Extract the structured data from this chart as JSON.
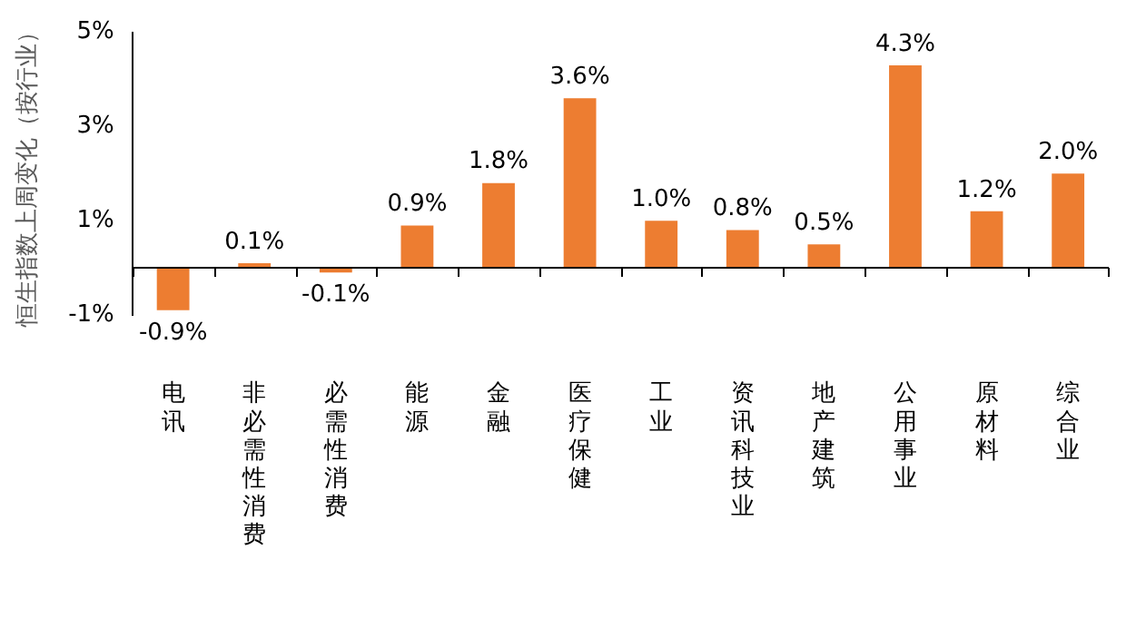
{
  "chart_data": {
    "type": "bar",
    "ylabel": "恒生指数上周变化（按行业）",
    "categories": [
      "电讯",
      "非必需性消费",
      "必需性消费",
      "能源",
      "金融",
      "医疗保健",
      "工业",
      "资讯科技业",
      "地产建筑",
      "公用事业",
      "原材料",
      "综合业"
    ],
    "values": [
      -0.9,
      0.1,
      -0.1,
      0.9,
      1.8,
      3.6,
      1.0,
      0.8,
      0.5,
      4.3,
      1.2,
      2.0
    ],
    "value_labels": [
      "-0.9%",
      "0.1%",
      "-0.1%",
      "0.9%",
      "1.8%",
      "3.6%",
      "1.0%",
      "0.8%",
      "0.5%",
      "4.3%",
      "1.2%",
      "2.0%"
    ],
    "color": "#ed7d31",
    "ylim": [
      -1,
      5
    ],
    "yticks": [
      {
        "value": -1,
        "label": "-1%"
      },
      {
        "value": 1,
        "label": "1%"
      },
      {
        "value": 3,
        "label": "3%"
      },
      {
        "value": 5,
        "label": "5%"
      }
    ],
    "grid": false,
    "legend": false
  }
}
